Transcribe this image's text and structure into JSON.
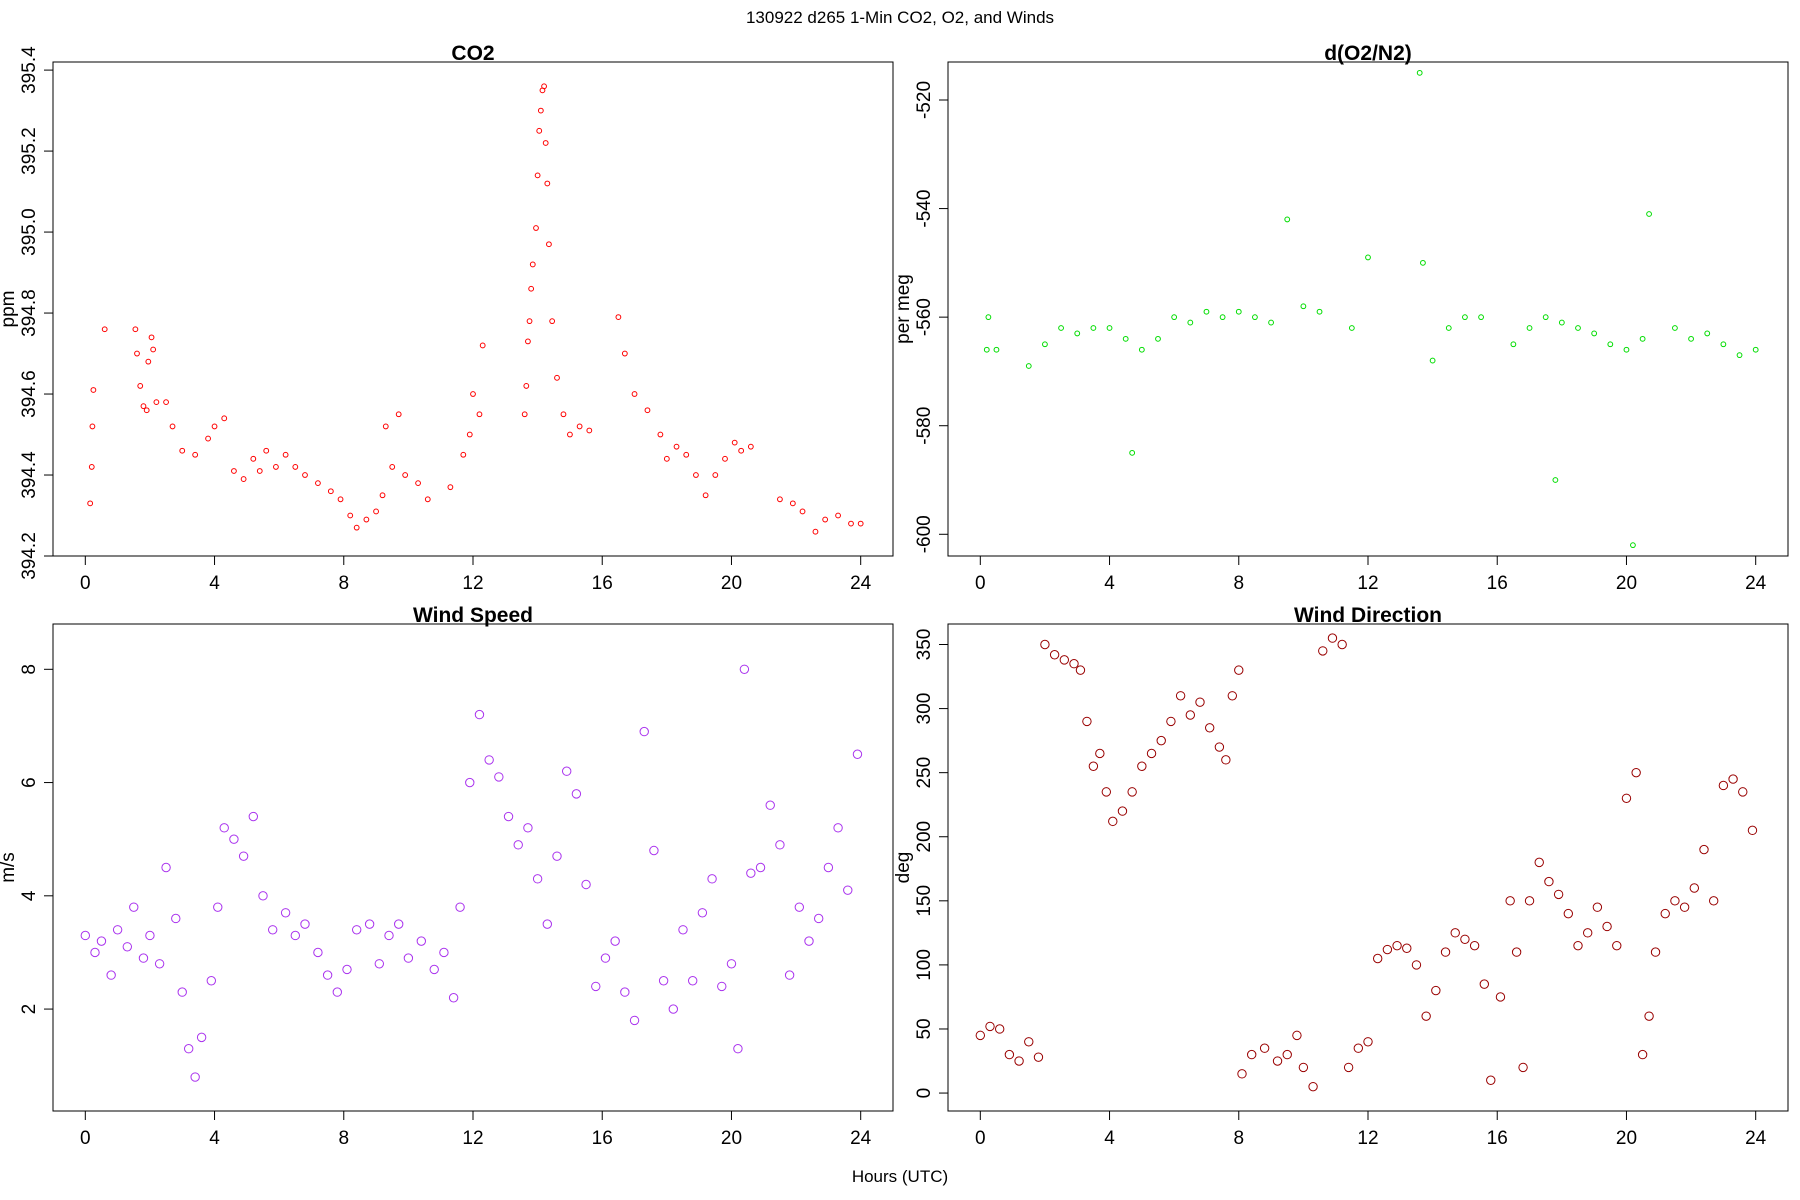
{
  "figure": {
    "title": "130922   d265   1-Min CO2, O2, and Winds",
    "xlabel": "Hours (UTC)"
  },
  "chart_data": [
    {
      "id": "co2",
      "type": "scatter",
      "title": "CO2",
      "xlabel": "",
      "ylabel": "ppm",
      "xlim": [
        -1,
        25
      ],
      "ylim": [
        394.2,
        395.42
      ],
      "xticks": [
        0,
        4,
        8,
        12,
        16,
        20,
        24
      ],
      "yticks": [
        394.2,
        394.4,
        394.6,
        394.8,
        395.0,
        395.2,
        395.4
      ],
      "ytick_labels": [
        "394.2",
        "394.4",
        "394.6",
        "394.8",
        "395.0",
        "395.2",
        "395.4"
      ],
      "grid": false,
      "marker_color": "#ff0000",
      "points": [
        [
          0.15,
          394.33
        ],
        [
          0.2,
          394.42
        ],
        [
          0.22,
          394.52
        ],
        [
          0.25,
          394.61
        ],
        [
          0.6,
          394.76
        ],
        [
          1.55,
          394.76
        ],
        [
          1.6,
          394.7
        ],
        [
          1.7,
          394.62
        ],
        [
          1.8,
          394.57
        ],
        [
          1.9,
          394.56
        ],
        [
          1.95,
          394.68
        ],
        [
          2.05,
          394.74
        ],
        [
          2.1,
          394.71
        ],
        [
          2.2,
          394.58
        ],
        [
          2.5,
          394.58
        ],
        [
          2.7,
          394.52
        ],
        [
          3.0,
          394.46
        ],
        [
          3.4,
          394.45
        ],
        [
          3.8,
          394.49
        ],
        [
          4.0,
          394.52
        ],
        [
          4.3,
          394.54
        ],
        [
          4.6,
          394.41
        ],
        [
          4.9,
          394.39
        ],
        [
          5.2,
          394.44
        ],
        [
          5.4,
          394.41
        ],
        [
          5.6,
          394.46
        ],
        [
          5.9,
          394.42
        ],
        [
          6.2,
          394.45
        ],
        [
          6.5,
          394.42
        ],
        [
          6.8,
          394.4
        ],
        [
          7.2,
          394.38
        ],
        [
          7.6,
          394.36
        ],
        [
          7.9,
          394.34
        ],
        [
          8.2,
          394.3
        ],
        [
          8.4,
          394.27
        ],
        [
          8.7,
          394.29
        ],
        [
          9.0,
          394.31
        ],
        [
          9.2,
          394.35
        ],
        [
          9.3,
          394.52
        ],
        [
          9.5,
          394.42
        ],
        [
          9.7,
          394.55
        ],
        [
          9.9,
          394.4
        ],
        [
          10.3,
          394.38
        ],
        [
          10.6,
          394.34
        ],
        [
          11.3,
          394.37
        ],
        [
          11.7,
          394.45
        ],
        [
          11.9,
          394.5
        ],
        [
          12.0,
          394.6
        ],
        [
          12.2,
          394.55
        ],
        [
          12.3,
          394.72
        ],
        [
          13.6,
          394.55
        ],
        [
          13.65,
          394.62
        ],
        [
          13.7,
          394.73
        ],
        [
          13.75,
          394.78
        ],
        [
          13.8,
          394.86
        ],
        [
          13.85,
          394.92
        ],
        [
          13.95,
          395.01
        ],
        [
          14.0,
          395.14
        ],
        [
          14.05,
          395.25
        ],
        [
          14.1,
          395.3
        ],
        [
          14.15,
          395.35
        ],
        [
          14.2,
          395.36
        ],
        [
          14.25,
          395.22
        ],
        [
          14.3,
          395.12
        ],
        [
          14.35,
          394.97
        ],
        [
          14.45,
          394.78
        ],
        [
          14.6,
          394.64
        ],
        [
          14.8,
          394.55
        ],
        [
          15.0,
          394.5
        ],
        [
          15.3,
          394.52
        ],
        [
          15.6,
          394.51
        ],
        [
          16.5,
          394.79
        ],
        [
          16.7,
          394.7
        ],
        [
          17.0,
          394.6
        ],
        [
          17.4,
          394.56
        ],
        [
          17.8,
          394.5
        ],
        [
          18.0,
          394.44
        ],
        [
          18.3,
          394.47
        ],
        [
          18.6,
          394.45
        ],
        [
          18.9,
          394.4
        ],
        [
          19.2,
          394.35
        ],
        [
          19.5,
          394.4
        ],
        [
          19.8,
          394.44
        ],
        [
          20.1,
          394.48
        ],
        [
          20.3,
          394.46
        ],
        [
          20.6,
          394.47
        ],
        [
          21.5,
          394.34
        ],
        [
          21.9,
          394.33
        ],
        [
          22.2,
          394.31
        ],
        [
          22.6,
          394.26
        ],
        [
          22.9,
          394.29
        ],
        [
          23.3,
          394.3
        ],
        [
          23.7,
          394.28
        ],
        [
          24.0,
          394.28
        ]
      ]
    },
    {
      "id": "o2",
      "type": "scatter",
      "title": "d(O2/N2)",
      "xlabel": "",
      "ylabel": "per meg",
      "xlim": [
        -1,
        25
      ],
      "ylim": [
        -604,
        -513
      ],
      "xticks": [
        0,
        4,
        8,
        12,
        16,
        20,
        24
      ],
      "yticks": [
        -600,
        -580,
        -560,
        -540,
        -520
      ],
      "ytick_labels": [
        "-600",
        "-580",
        "-560",
        "-540",
        "-520"
      ],
      "grid": false,
      "marker_color": "#00dd00",
      "points": [
        [
          0.2,
          -566
        ],
        [
          0.25,
          -560
        ],
        [
          0.5,
          -566
        ],
        [
          1.5,
          -569
        ],
        [
          2.0,
          -565
        ],
        [
          2.5,
          -562
        ],
        [
          3.0,
          -563
        ],
        [
          3.5,
          -562
        ],
        [
          4.0,
          -562
        ],
        [
          4.5,
          -564
        ],
        [
          4.7,
          -585
        ],
        [
          5.0,
          -566
        ],
        [
          5.5,
          -564
        ],
        [
          6.0,
          -560
        ],
        [
          6.5,
          -561
        ],
        [
          7.0,
          -559
        ],
        [
          7.5,
          -560
        ],
        [
          8.0,
          -559
        ],
        [
          8.5,
          -560
        ],
        [
          9.0,
          -561
        ],
        [
          9.5,
          -542
        ],
        [
          10.0,
          -558
        ],
        [
          10.5,
          -559
        ],
        [
          11.5,
          -562
        ],
        [
          12.0,
          -549
        ],
        [
          13.6,
          -515
        ],
        [
          13.7,
          -550
        ],
        [
          14.0,
          -568
        ],
        [
          14.5,
          -562
        ],
        [
          15.0,
          -560
        ],
        [
          15.5,
          -560
        ],
        [
          16.5,
          -565
        ],
        [
          17.0,
          -562
        ],
        [
          17.5,
          -560
        ],
        [
          17.8,
          -590
        ],
        [
          18.0,
          -561
        ],
        [
          18.5,
          -562
        ],
        [
          19.0,
          -563
        ],
        [
          19.5,
          -565
        ],
        [
          20.0,
          -566
        ],
        [
          20.2,
          -602
        ],
        [
          20.5,
          -564
        ],
        [
          20.7,
          -541
        ],
        [
          21.5,
          -562
        ],
        [
          22.0,
          -564
        ],
        [
          22.5,
          -563
        ],
        [
          23.0,
          -565
        ],
        [
          23.5,
          -567
        ],
        [
          24.0,
          -566
        ]
      ]
    },
    {
      "id": "wind-speed",
      "type": "scatter",
      "title": "Wind Speed",
      "xlabel": "",
      "ylabel": "m/s",
      "xlim": [
        -1,
        25
      ],
      "ylim": [
        0.2,
        8.8
      ],
      "xticks": [
        0,
        4,
        8,
        12,
        16,
        20,
        24
      ],
      "yticks": [
        2,
        4,
        6,
        8
      ],
      "ytick_labels": [
        "2",
        "4",
        "6",
        "8"
      ],
      "grid": false,
      "marker_color": "#aa33ee",
      "points": [
        [
          0.0,
          3.3
        ],
        [
          0.3,
          3.0
        ],
        [
          0.5,
          3.2
        ],
        [
          0.8,
          2.6
        ],
        [
          1.0,
          3.4
        ],
        [
          1.3,
          3.1
        ],
        [
          1.5,
          3.8
        ],
        [
          1.8,
          2.9
        ],
        [
          2.0,
          3.3
        ],
        [
          2.3,
          2.8
        ],
        [
          2.5,
          4.5
        ],
        [
          2.8,
          3.6
        ],
        [
          3.0,
          2.3
        ],
        [
          3.2,
          1.3
        ],
        [
          3.4,
          0.8
        ],
        [
          3.6,
          1.5
        ],
        [
          3.9,
          2.5
        ],
        [
          4.1,
          3.8
        ],
        [
          4.3,
          5.2
        ],
        [
          4.6,
          5.0
        ],
        [
          4.9,
          4.7
        ],
        [
          5.2,
          5.4
        ],
        [
          5.5,
          4.0
        ],
        [
          5.8,
          3.4
        ],
        [
          6.2,
          3.7
        ],
        [
          6.5,
          3.3
        ],
        [
          6.8,
          3.5
        ],
        [
          7.2,
          3.0
        ],
        [
          7.5,
          2.6
        ],
        [
          7.8,
          2.3
        ],
        [
          8.1,
          2.7
        ],
        [
          8.4,
          3.4
        ],
        [
          8.8,
          3.5
        ],
        [
          9.1,
          2.8
        ],
        [
          9.4,
          3.3
        ],
        [
          9.7,
          3.5
        ],
        [
          10.0,
          2.9
        ],
        [
          10.4,
          3.2
        ],
        [
          10.8,
          2.7
        ],
        [
          11.1,
          3.0
        ],
        [
          11.4,
          2.2
        ],
        [
          11.6,
          3.8
        ],
        [
          11.9,
          6.0
        ],
        [
          12.2,
          7.2
        ],
        [
          12.5,
          6.4
        ],
        [
          12.8,
          6.1
        ],
        [
          13.1,
          5.4
        ],
        [
          13.4,
          4.9
        ],
        [
          13.7,
          5.2
        ],
        [
          14.0,
          4.3
        ],
        [
          14.3,
          3.5
        ],
        [
          14.6,
          4.7
        ],
        [
          14.9,
          6.2
        ],
        [
          15.2,
          5.8
        ],
        [
          15.5,
          4.2
        ],
        [
          15.8,
          2.4
        ],
        [
          16.1,
          2.9
        ],
        [
          16.4,
          3.2
        ],
        [
          16.7,
          2.3
        ],
        [
          17.0,
          1.8
        ],
        [
          17.3,
          6.9
        ],
        [
          17.6,
          4.8
        ],
        [
          17.9,
          2.5
        ],
        [
          18.2,
          2.0
        ],
        [
          18.5,
          3.4
        ],
        [
          18.8,
          2.5
        ],
        [
          19.1,
          3.7
        ],
        [
          19.4,
          4.3
        ],
        [
          19.7,
          2.4
        ],
        [
          20.0,
          2.8
        ],
        [
          20.2,
          1.3
        ],
        [
          20.4,
          8.0
        ],
        [
          20.6,
          4.4
        ],
        [
          20.9,
          4.5
        ],
        [
          21.2,
          5.6
        ],
        [
          21.5,
          4.9
        ],
        [
          21.8,
          2.6
        ],
        [
          22.1,
          3.8
        ],
        [
          22.4,
          3.2
        ],
        [
          22.7,
          3.6
        ],
        [
          23.0,
          4.5
        ],
        [
          23.3,
          5.2
        ],
        [
          23.6,
          4.1
        ],
        [
          23.9,
          6.5
        ]
      ]
    },
    {
      "id": "wind-direction",
      "type": "scatter",
      "title": "Wind Direction",
      "xlabel": "",
      "ylabel": "deg",
      "xlim": [
        -1,
        25
      ],
      "ylim": [
        -14,
        366
      ],
      "xticks": [
        0,
        4,
        8,
        12,
        16,
        20,
        24
      ],
      "yticks": [
        0,
        50,
        100,
        150,
        200,
        250,
        300,
        350
      ],
      "ytick_labels": [
        "0",
        "50",
        "100",
        "150",
        "200",
        "250",
        "300",
        "350"
      ],
      "grid": false,
      "marker_color": "#990000",
      "points": [
        [
          0.0,
          45
        ],
        [
          0.3,
          52
        ],
        [
          0.6,
          50
        ],
        [
          0.9,
          30
        ],
        [
          1.2,
          25
        ],
        [
          1.5,
          40
        ],
        [
          1.8,
          28
        ],
        [
          2.0,
          350
        ],
        [
          2.3,
          342
        ],
        [
          2.6,
          338
        ],
        [
          2.9,
          335
        ],
        [
          3.1,
          330
        ],
        [
          3.3,
          290
        ],
        [
          3.5,
          255
        ],
        [
          3.7,
          265
        ],
        [
          3.9,
          235
        ],
        [
          4.1,
          212
        ],
        [
          4.4,
          220
        ],
        [
          4.7,
          235
        ],
        [
          5.0,
          255
        ],
        [
          5.3,
          265
        ],
        [
          5.6,
          275
        ],
        [
          5.9,
          290
        ],
        [
          6.2,
          310
        ],
        [
          6.5,
          295
        ],
        [
          6.8,
          305
        ],
        [
          7.1,
          285
        ],
        [
          7.4,
          270
        ],
        [
          7.6,
          260
        ],
        [
          7.8,
          310
        ],
        [
          8.0,
          330
        ],
        [
          8.1,
          15
        ],
        [
          8.4,
          30
        ],
        [
          8.8,
          35
        ],
        [
          9.2,
          25
        ],
        [
          9.5,
          30
        ],
        [
          9.8,
          45
        ],
        [
          10.0,
          20
        ],
        [
          10.3,
          5
        ],
        [
          10.6,
          345
        ],
        [
          10.9,
          355
        ],
        [
          11.2,
          350
        ],
        [
          11.4,
          20
        ],
        [
          11.7,
          35
        ],
        [
          12.0,
          40
        ],
        [
          12.3,
          105
        ],
        [
          12.6,
          112
        ],
        [
          12.9,
          115
        ],
        [
          13.2,
          113
        ],
        [
          13.5,
          100
        ],
        [
          13.8,
          60
        ],
        [
          14.1,
          80
        ],
        [
          14.4,
          110
        ],
        [
          14.7,
          125
        ],
        [
          15.0,
          120
        ],
        [
          15.3,
          115
        ],
        [
          15.6,
          85
        ],
        [
          15.8,
          10
        ],
        [
          16.1,
          75
        ],
        [
          16.4,
          150
        ],
        [
          16.6,
          110
        ],
        [
          16.8,
          20
        ],
        [
          17.0,
          150
        ],
        [
          17.3,
          180
        ],
        [
          17.6,
          165
        ],
        [
          17.9,
          155
        ],
        [
          18.2,
          140
        ],
        [
          18.5,
          115
        ],
        [
          18.8,
          125
        ],
        [
          19.1,
          145
        ],
        [
          19.4,
          130
        ],
        [
          19.7,
          115
        ],
        [
          20.0,
          230
        ],
        [
          20.3,
          250
        ],
        [
          20.5,
          30
        ],
        [
          20.7,
          60
        ],
        [
          20.9,
          110
        ],
        [
          21.2,
          140
        ],
        [
          21.5,
          150
        ],
        [
          21.8,
          145
        ],
        [
          22.1,
          160
        ],
        [
          22.4,
          190
        ],
        [
          22.7,
          150
        ],
        [
          23.0,
          240
        ],
        [
          23.3,
          245
        ],
        [
          23.6,
          235
        ],
        [
          23.9,
          205
        ]
      ]
    }
  ]
}
